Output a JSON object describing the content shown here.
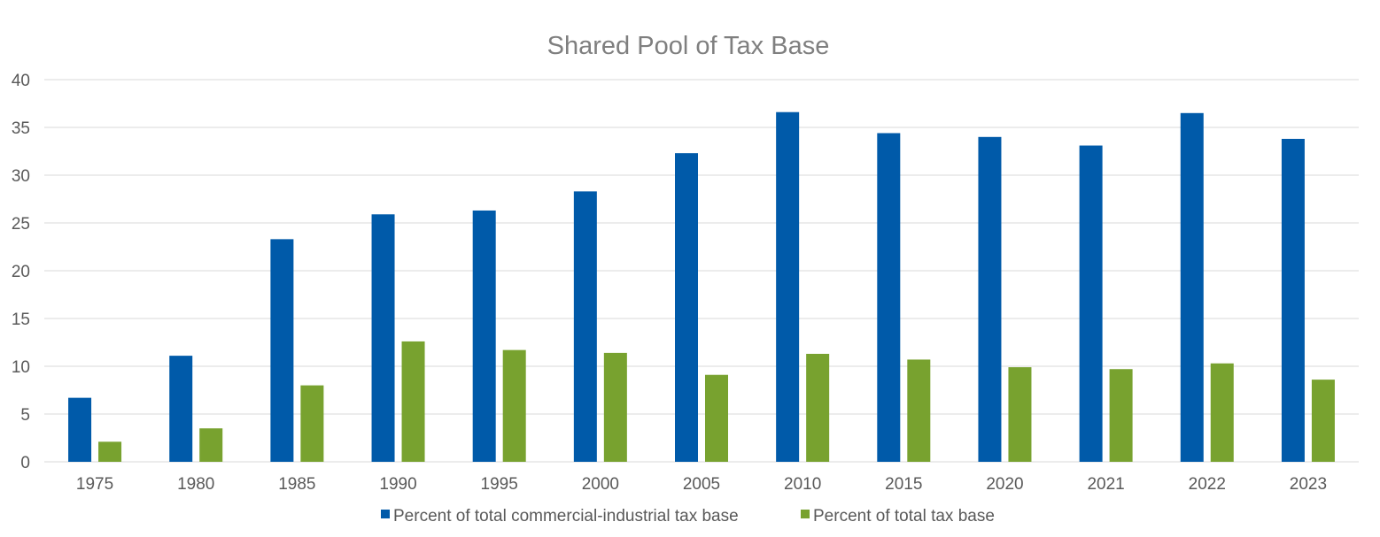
{
  "chart_data": {
    "type": "bar",
    "title": "Shared Pool of Tax Base",
    "xlabel": "",
    "ylabel": "",
    "ylim": [
      0,
      40
    ],
    "yticks": [
      0,
      5,
      10,
      15,
      20,
      25,
      30,
      35,
      40
    ],
    "grid": true,
    "legend_position": "bottom",
    "categories": [
      "1975",
      "1980",
      "1985",
      "1990",
      "1995",
      "2000",
      "2005",
      "2010",
      "2015",
      "2020",
      "2021",
      "2022",
      "2023"
    ],
    "series": [
      {
        "name": "Percent of total commercial-industrial tax base",
        "color": "#005aa9",
        "values": [
          6.7,
          11.1,
          23.3,
          25.9,
          26.3,
          28.3,
          32.3,
          36.6,
          34.4,
          34.0,
          33.1,
          36.5,
          33.8
        ]
      },
      {
        "name": "Percent of total tax base",
        "color": "#78a22f",
        "values": [
          2.1,
          3.5,
          8.0,
          12.6,
          11.7,
          11.4,
          9.1,
          11.3,
          10.7,
          9.9,
          9.7,
          10.3,
          8.6
        ]
      }
    ]
  },
  "colors": {
    "gridline": "#d9d9d9",
    "title": "#7f7f7f",
    "tick_label": "#595959"
  }
}
